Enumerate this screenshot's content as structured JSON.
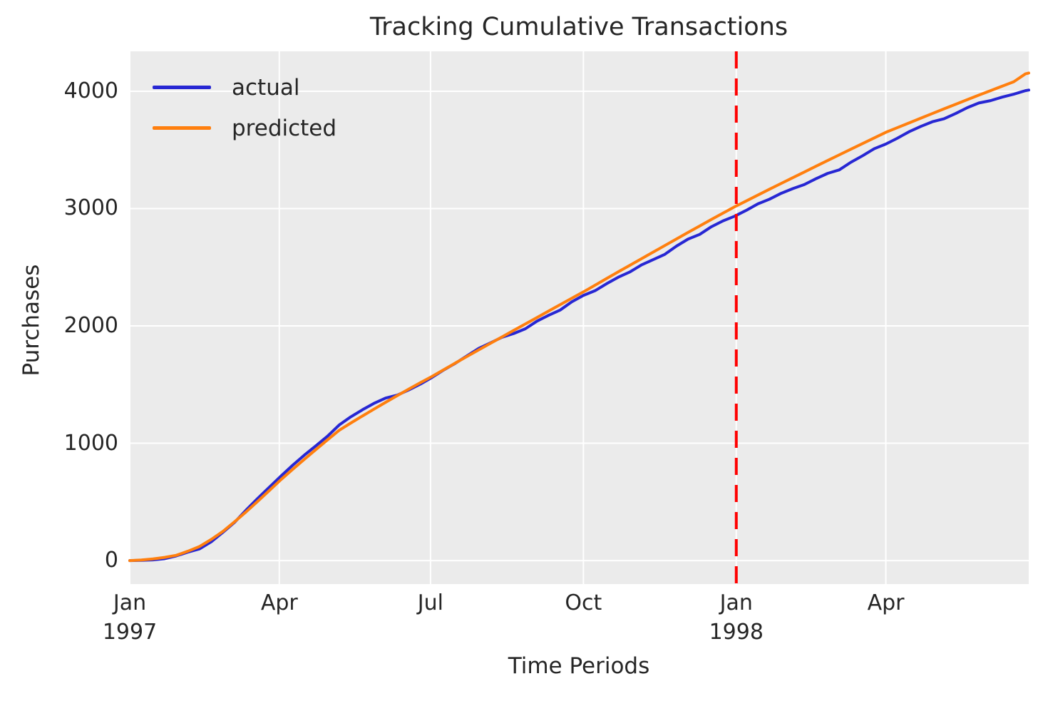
{
  "style_colors": {
    "figure_background": "#ffffff",
    "axes_background": "#ebebeb",
    "grid": "#ffffff",
    "text": "#262626"
  },
  "chart_data": {
    "type": "line",
    "title": "Tracking Cumulative Transactions",
    "xlabel": "Time Periods",
    "ylabel": "Purchases",
    "grid": true,
    "x_axis": {
      "unit": "days since 1997-01-01",
      "xlim": [
        0,
        541
      ],
      "ticks": [
        {
          "label": "Jan",
          "sublabel": "1997",
          "day": 0
        },
        {
          "label": "Apr",
          "sublabel": "",
          "day": 90
        },
        {
          "label": "Jul",
          "sublabel": "",
          "day": 181
        },
        {
          "label": "Oct",
          "sublabel": "",
          "day": 273
        },
        {
          "label": "Jan",
          "sublabel": "1998",
          "day": 365
        },
        {
          "label": "Apr",
          "sublabel": "",
          "day": 455
        }
      ]
    },
    "y_axis": {
      "ylim": [
        -200,
        4340
      ],
      "ticks": [
        0,
        1000,
        2000,
        3000,
        4000
      ]
    },
    "legend": {
      "position": "upper left",
      "entries": [
        "actual",
        "predicted"
      ]
    },
    "vline": {
      "day": 365,
      "color": "#ff0000",
      "style": "dashed"
    },
    "x_days": [
      0,
      7,
      14,
      21,
      28,
      35,
      42,
      49,
      56,
      63,
      70,
      77,
      84,
      91,
      98,
      105,
      112,
      119,
      126,
      133,
      140,
      147,
      154,
      161,
      168,
      175,
      182,
      189,
      196,
      203,
      210,
      217,
      224,
      231,
      238,
      245,
      252,
      259,
      266,
      273,
      280,
      287,
      294,
      301,
      308,
      315,
      322,
      329,
      336,
      343,
      350,
      357,
      364,
      371,
      378,
      385,
      392,
      399,
      406,
      413,
      420,
      427,
      434,
      441,
      448,
      455,
      462,
      469,
      476,
      483,
      490,
      497,
      504,
      511,
      518,
      525,
      532,
      539,
      541
    ],
    "series": [
      {
        "name": "actual",
        "color": "#2727d3",
        "values": [
          0,
          2,
          6,
          16,
          40,
          72,
          100,
          160,
          240,
          325,
          430,
          530,
          625,
          720,
          812,
          898,
          978,
          1060,
          1155,
          1225,
          1285,
          1340,
          1385,
          1410,
          1455,
          1505,
          1562,
          1625,
          1682,
          1745,
          1808,
          1855,
          1903,
          1935,
          1975,
          2040,
          2090,
          2135,
          2205,
          2260,
          2300,
          2360,
          2415,
          2460,
          2520,
          2565,
          2610,
          2680,
          2740,
          2780,
          2845,
          2895,
          2935,
          2985,
          3040,
          3080,
          3130,
          3170,
          3205,
          3255,
          3300,
          3330,
          3395,
          3450,
          3510,
          3550,
          3600,
          3655,
          3700,
          3740,
          3765,
          3810,
          3860,
          3900,
          3920,
          3950,
          3975,
          4005,
          4010
        ]
      },
      {
        "name": "predicted",
        "color": "#ff7f0e",
        "values": [
          0,
          5,
          14,
          27,
          45,
          80,
          120,
          180,
          248,
          330,
          415,
          505,
          597,
          690,
          777,
          862,
          946,
          1029,
          1110,
          1172,
          1232,
          1291,
          1349,
          1406,
          1462,
          1517,
          1570,
          1627,
          1684,
          1740,
          1796,
          1851,
          1906,
          1961,
          2016,
          2071,
          2126,
          2181,
          2236,
          2290,
          2347,
          2404,
          2461,
          2517,
          2573,
          2629,
          2685,
          2741,
          2797,
          2852,
          2907,
          2961,
          3015,
          3065,
          3115,
          3165,
          3214,
          3263,
          3312,
          3361,
          3410,
          3458,
          3506,
          3554,
          3602,
          3650,
          3690,
          3730,
          3770,
          3810,
          3850,
          3889,
          3928,
          3967,
          4005,
          4043,
          4081,
          4148,
          4155
        ]
      }
    ]
  }
}
